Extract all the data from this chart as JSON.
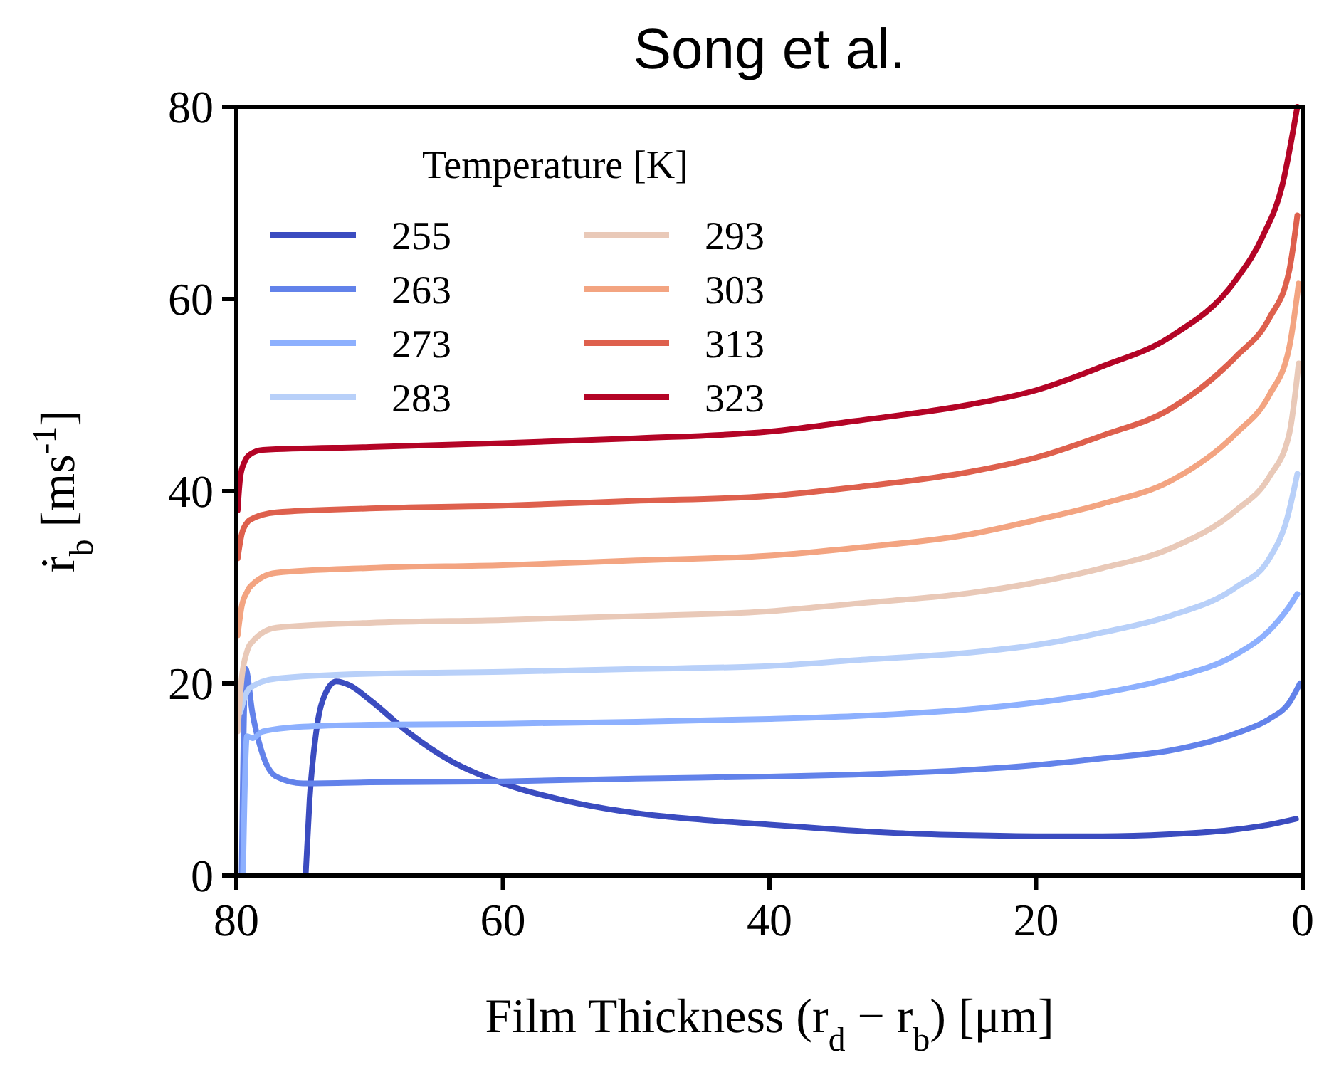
{
  "chart_data": {
    "type": "line",
    "title": "Song et al.",
    "xlabel": "Film Thickness (r$_{d}$ − r$_{b}$) [μm]",
    "ylabel": "ṙ$_{b}$ [ms$^{-1}$]",
    "legend_title": "Temperature [K]",
    "legend": "top left",
    "grid": false,
    "line_style": "solid",
    "marker": "none",
    "xlim": [
      80,
      0
    ],
    "ylim": [
      0,
      80
    ],
    "xticks": [
      80,
      60,
      40,
      20,
      0
    ],
    "yticks": [
      0,
      20,
      40,
      60,
      80
    ],
    "series": [
      {
        "name": "255",
        "color": "#3b4cc0",
        "x": [
          74.8,
          74.5,
          74,
          73.3,
          72.5,
          71.5,
          70,
          67,
          64,
          60,
          55,
          50,
          45,
          40,
          35,
          30,
          25,
          20,
          15,
          10,
          5,
          2.5,
          0.5
        ],
        "values": [
          0,
          8,
          15,
          19,
          20.2,
          19.8,
          18.3,
          14.8,
          12,
          9.6,
          7.7,
          6.5,
          5.8,
          5.3,
          4.8,
          4.4,
          4.2,
          4.1,
          4.1,
          4.3,
          4.8,
          5.3,
          5.9
        ]
      },
      {
        "name": "263",
        "color": "#6282ea",
        "x": [
          79.6,
          79.3,
          78.8,
          78,
          77,
          75,
          70,
          60,
          50,
          40,
          33.6,
          25,
          20,
          15,
          10,
          5,
          2.5,
          1,
          0.2
        ],
        "values": [
          0,
          21.5,
          17,
          12.5,
          10.3,
          9.6,
          9.7,
          9.8,
          10.1,
          10.3,
          10.5,
          11,
          11.5,
          12.2,
          13,
          14.8,
          16.3,
          18,
          20
        ]
      },
      {
        "name": "273",
        "color": "#8db0fe",
        "x": [
          79.5,
          79.2,
          78.8,
          78,
          75,
          70,
          60,
          50,
          40,
          33.6,
          25,
          20,
          15,
          10,
          5,
          2.5,
          1,
          0.4
        ],
        "values": [
          0,
          14.5,
          14.3,
          15,
          15.5,
          15.7,
          15.8,
          16,
          16.3,
          16.6,
          17.3,
          18,
          19,
          20.5,
          23,
          25.5,
          28,
          29.3
        ]
      },
      {
        "name": "283",
        "color": "#b8d0f9",
        "x": [
          79.7,
          79.3,
          79,
          77,
          70,
          60,
          50,
          40,
          33.6,
          25,
          20,
          15,
          10,
          5,
          2.5,
          1.2,
          0.4
        ],
        "values": [
          17,
          18.8,
          19.5,
          20.5,
          21,
          21.2,
          21.5,
          21.8,
          22.4,
          23.2,
          24,
          25.3,
          27,
          30,
          33,
          37,
          41.8
        ]
      },
      {
        "name": "293",
        "color": "#e9c9b8",
        "x": [
          79.9,
          79.6,
          79.2,
          79,
          77,
          70,
          60,
          50,
          40,
          33.6,
          25,
          20,
          15,
          10,
          5,
          2.5,
          1,
          0.3
        ],
        "values": [
          15,
          20.5,
          23.3,
          24,
          25.8,
          26.3,
          26.6,
          27,
          27.5,
          28.3,
          29.4,
          30.5,
          32,
          34,
          38,
          41.5,
          46,
          53.3
        ]
      },
      {
        "name": "303",
        "color": "#f3a481",
        "x": [
          79.9,
          79.6,
          79.2,
          79,
          77,
          70,
          60,
          50,
          40,
          33.6,
          25,
          20,
          15,
          10,
          5,
          2.5,
          1,
          0.3
        ],
        "values": [
          25,
          28,
          29.5,
          30,
          31.5,
          32,
          32.3,
          32.8,
          33.3,
          34.1,
          35.5,
          37,
          38.7,
          41,
          46,
          50,
          55,
          61.6
        ]
      },
      {
        "name": "313",
        "color": "#de604d",
        "x": [
          79.9,
          79.6,
          79.2,
          79,
          77,
          70,
          60,
          50,
          40,
          33.6,
          25,
          20,
          15,
          10,
          5,
          2.5,
          1,
          0.4
        ],
        "values": [
          33,
          35.5,
          36.7,
          37,
          37.8,
          38.2,
          38.5,
          39,
          39.5,
          40.4,
          42,
          43.5,
          45.8,
          48.5,
          54,
          58,
          63,
          68.7
        ]
      },
      {
        "name": "323",
        "color": "#b40426",
        "x": [
          79.9,
          79.7,
          79.4,
          79,
          78,
          70,
          60,
          50,
          40,
          33.6,
          25,
          20,
          15,
          10,
          5,
          3,
          1.5,
          0.4
        ],
        "values": [
          38,
          41.5,
          43,
          43.8,
          44.3,
          44.6,
          45,
          45.5,
          46.2,
          47.3,
          49,
          50.5,
          53,
          56,
          62,
          66.5,
          72,
          80
        ]
      }
    ]
  }
}
